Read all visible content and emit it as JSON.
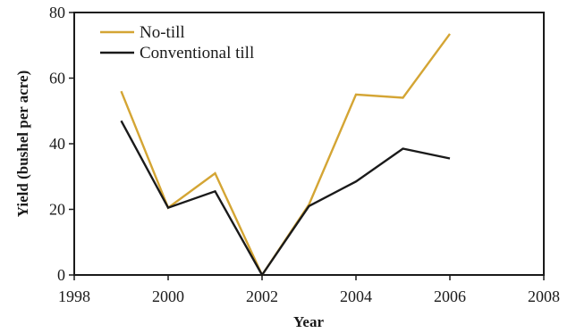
{
  "chart_data": {
    "type": "line",
    "title": "",
    "xlabel": "Year",
    "ylabel": "Yield (bushel per acre)",
    "xlim": [
      1998,
      2008
    ],
    "ylim": [
      0,
      80
    ],
    "xticks": [
      1998,
      2000,
      2002,
      2004,
      2006,
      2008
    ],
    "yticks": [
      0,
      20,
      40,
      60,
      80
    ],
    "x": [
      1999,
      2000,
      2001,
      2002,
      2003,
      2004,
      2005,
      2006
    ],
    "series": [
      {
        "name": "No-till",
        "color": "#d4a534",
        "values": [
          56,
          20.5,
          31,
          0,
          21.5,
          55,
          54,
          73.5
        ]
      },
      {
        "name": "Conventional till",
        "color": "#1a1a1a",
        "values": [
          47,
          20.5,
          25.5,
          0,
          21,
          28.5,
          38.5,
          35.5
        ]
      }
    ],
    "legend_position": "top-left",
    "grid": false
  }
}
